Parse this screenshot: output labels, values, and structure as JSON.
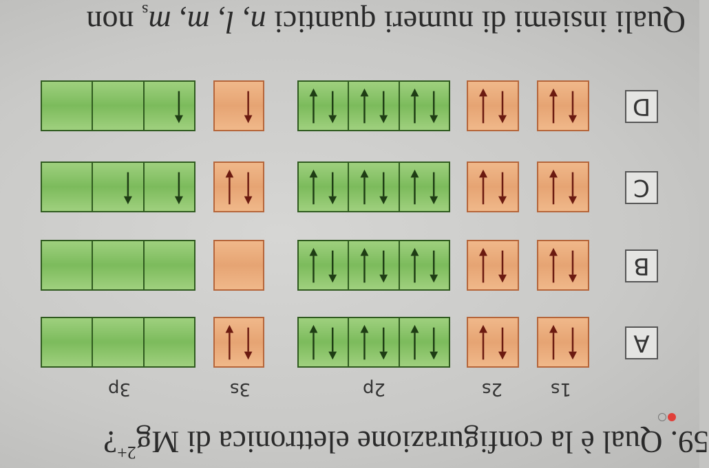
{
  "question": {
    "number": "59.",
    "text": "Qual è la configurazione elettronica di Mg",
    "superscript": "2+",
    "end": "?",
    "difficulty_dots": [
      "filled-red",
      "empty"
    ]
  },
  "orbital_labels": [
    "1s",
    "2s",
    "2p",
    "3s",
    "3p"
  ],
  "options": [
    {
      "letter": "A",
      "orbitals": {
        "1s": [
          "ud"
        ],
        "2s": [
          "ud"
        ],
        "2p": [
          "ud",
          "ud",
          "ud"
        ],
        "3s": [
          "ud"
        ],
        "3p": [
          "",
          "",
          ""
        ]
      }
    },
    {
      "letter": "B",
      "orbitals": {
        "1s": [
          "ud"
        ],
        "2s": [
          "ud"
        ],
        "2p": [
          "ud",
          "ud",
          "ud"
        ],
        "3s": [
          ""
        ],
        "3p": [
          "",
          "",
          ""
        ]
      }
    },
    {
      "letter": "C",
      "orbitals": {
        "1s": [
          "ud"
        ],
        "2s": [
          "ud"
        ],
        "2p": [
          "ud",
          "ud",
          "ud"
        ],
        "3s": [
          "ud"
        ],
        "3p": [
          "u",
          "u",
          ""
        ]
      }
    },
    {
      "letter": "D",
      "orbitals": {
        "1s": [
          "ud"
        ],
        "2s": [
          "ud"
        ],
        "2p": [
          "ud",
          "ud",
          "ud"
        ],
        "3s": [
          "u"
        ],
        "3p": [
          "u",
          "",
          ""
        ]
      }
    }
  ],
  "next_question": {
    "text_a": "Quali insiemi di numeri quantici ",
    "n": "n",
    "sep1": ", ",
    "l": "l",
    "sep2": ", ",
    "m": "m",
    "sep3": ", ",
    "ms": "m",
    "ms_sub": "s",
    "text_b": " non"
  },
  "colors": {
    "s_box": "#e6a473",
    "p_box": "#7cbb5c",
    "s_arrow": "#6b1a10",
    "p_arrow": "#1e3d14",
    "dot": "#e0403a"
  }
}
